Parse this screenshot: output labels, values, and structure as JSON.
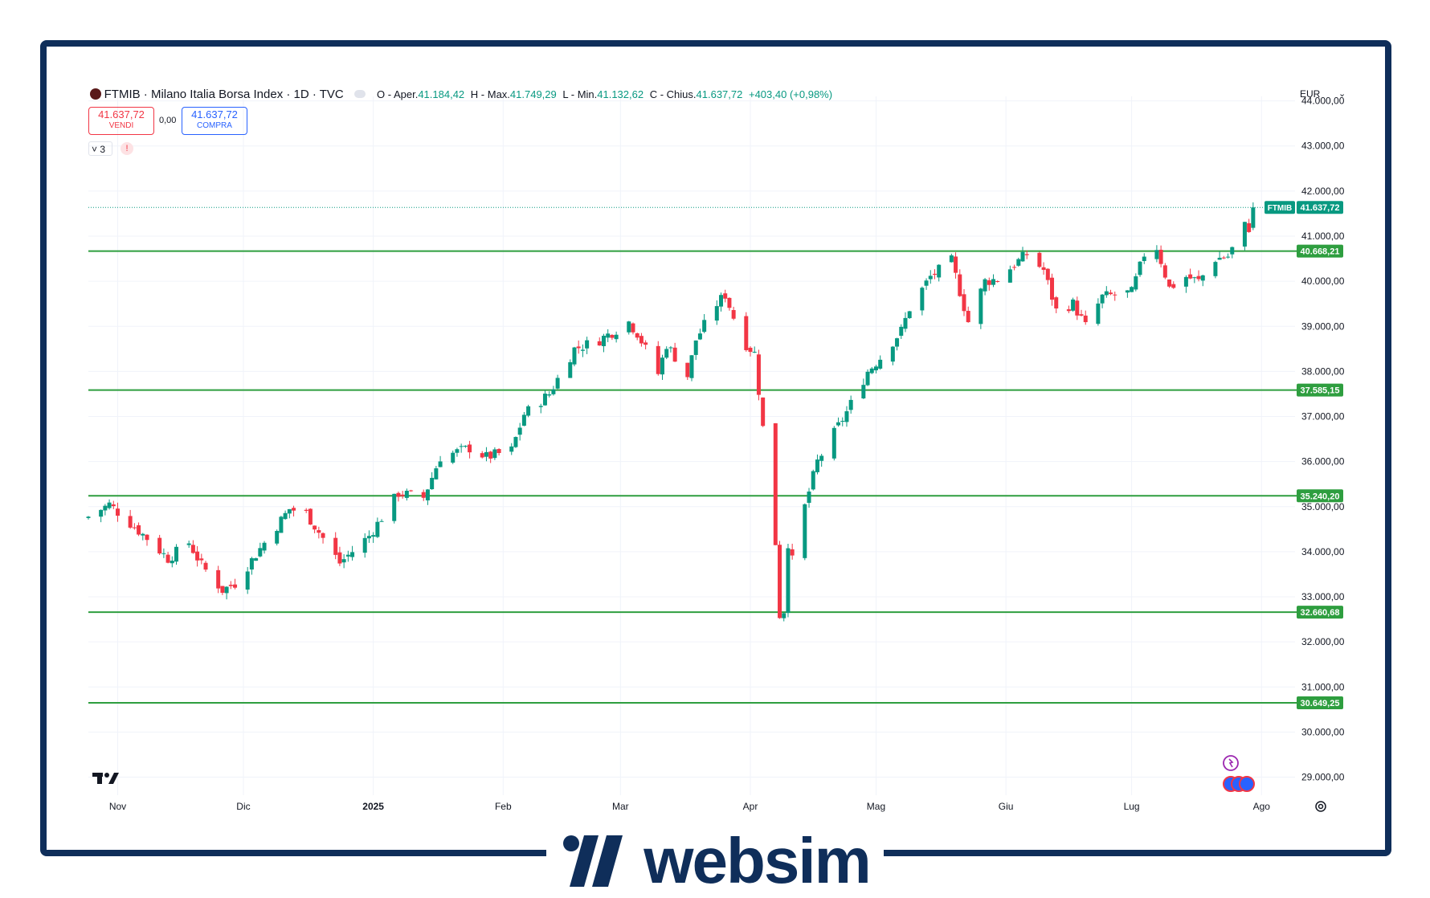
{
  "header": {
    "symbol_icon": "italy-flag-icon",
    "title": "FTMIB · Milano Italia Borsa Index · 1D · TVC",
    "open_label": "O - Aper.",
    "open": "41.184,42",
    "high_label": "H - Max.",
    "high": "41.749,29",
    "low_label": "L - Min.",
    "low": "41.132,62",
    "close_label": "C - Chius.",
    "close": "41.637,72",
    "change": "+403,40 (+0,98%)"
  },
  "trade": {
    "sell_price": "41.637,72",
    "sell_label": "VENDI",
    "spread": "0,00",
    "buy_price": "41.637,72",
    "buy_label": "COMPRA"
  },
  "indicators": {
    "count": "3",
    "alert": "!"
  },
  "currency": "EUR",
  "brand": {
    "name": "websim",
    "color": "#0f2e5a"
  },
  "colors": {
    "up": "#089981",
    "down": "#f23645",
    "support": "#2e9e3f",
    "frame": "#0f2e5a"
  },
  "chart_data": {
    "type": "candlestick",
    "symbol": "FTMIB",
    "last_price_label": "41.637,72",
    "ylim": [
      28600,
      44100
    ],
    "y_ticks": [
      29000,
      30000,
      31000,
      32000,
      33000,
      34000,
      35000,
      36000,
      37000,
      38000,
      39000,
      40000,
      41000,
      42000,
      43000,
      44000
    ],
    "y_tick_labels": [
      "29.000,00",
      "30.000,00",
      "31.000,00",
      "32.000,00",
      "33.000,00",
      "34.000,00",
      "35.000,00",
      "36.000,00",
      "37.000,00",
      "38.000,00",
      "39.000,00",
      "40.000,00",
      "41.000,00",
      "42.000,00",
      "43.000,00",
      "44.000,00"
    ],
    "x_start": "2024-10-25",
    "x_end": "2025-08-09",
    "x_ticks": [
      {
        "date": "2024-11-01",
        "label": "Nov"
      },
      {
        "date": "2024-12-01",
        "label": "Dic"
      },
      {
        "date": "2025-01-01",
        "label": "2025"
      },
      {
        "date": "2025-02-01",
        "label": "Feb"
      },
      {
        "date": "2025-03-01",
        "label": "Mar"
      },
      {
        "date": "2025-04-01",
        "label": "Apr"
      },
      {
        "date": "2025-05-01",
        "label": "Mag"
      },
      {
        "date": "2025-06-01",
        "label": "Giu"
      },
      {
        "date": "2025-07-01",
        "label": "Lug"
      },
      {
        "date": "2025-08-01",
        "label": "Ago"
      }
    ],
    "horizontal_levels": [
      {
        "value": 40668.21,
        "label": "40.668,21"
      },
      {
        "value": 37585.15,
        "label": "37.585,15"
      },
      {
        "value": 35240.2,
        "label": "35.240,20"
      },
      {
        "value": 32660.68,
        "label": "32.660,68"
      },
      {
        "value": 30649.25,
        "label": "30.649,25"
      }
    ],
    "last_price": 41637.72,
    "close_series": {
      "description": "approximate daily closes, linearly interpolated between key points",
      "points": [
        [
          "2024-10-25",
          34780
        ],
        [
          "2024-10-30",
          35050
        ],
        [
          "2024-11-05",
          34550
        ],
        [
          "2024-11-08",
          34300
        ],
        [
          "2024-11-13",
          33850
        ],
        [
          "2024-11-18",
          34200
        ],
        [
          "2024-11-21",
          33700
        ],
        [
          "2024-11-26",
          33150
        ],
        [
          "2024-11-29",
          33300
        ],
        [
          "2024-12-06",
          34200
        ],
        [
          "2024-12-12",
          34950
        ],
        [
          "2024-12-16",
          34850
        ],
        [
          "2024-12-20",
          34300
        ],
        [
          "2024-12-24",
          33750
        ],
        [
          "2024-12-31",
          34350
        ],
        [
          "2025-01-07",
          35300
        ],
        [
          "2025-01-13",
          35200
        ],
        [
          "2025-01-17",
          36100
        ],
        [
          "2025-01-24",
          36300
        ],
        [
          "2025-01-28",
          36100
        ],
        [
          "2025-02-03",
          36250
        ],
        [
          "2025-02-06",
          37050
        ],
        [
          "2025-02-12",
          37500
        ],
        [
          "2025-02-18",
          38500
        ],
        [
          "2025-02-24",
          38700
        ],
        [
          "2025-03-03",
          39100
        ],
        [
          "2025-03-05",
          38850
        ],
        [
          "2025-03-10",
          37950
        ],
        [
          "2025-03-12",
          38600
        ],
        [
          "2025-03-17",
          37900
        ],
        [
          "2025-03-19",
          38700
        ],
        [
          "2025-03-24",
          39500
        ],
        [
          "2025-03-26",
          39700
        ],
        [
          "2025-03-28",
          39200
        ],
        [
          "2025-03-31",
          38600
        ],
        [
          "2025-04-02",
          38400
        ],
        [
          "2025-04-04",
          36750
        ],
        [
          "2025-04-07",
          34200
        ],
        [
          "2025-04-08",
          32600
        ],
        [
          "2025-04-09",
          32700
        ],
        [
          "2025-04-10",
          34200
        ],
        [
          "2025-04-11",
          33800
        ],
        [
          "2025-04-14",
          35000
        ],
        [
          "2025-04-17",
          36000
        ],
        [
          "2025-04-24",
          37100
        ],
        [
          "2025-04-29",
          38000
        ],
        [
          "2025-05-02",
          38300
        ],
        [
          "2025-05-07",
          38900
        ],
        [
          "2025-05-09",
          39400
        ],
        [
          "2025-05-14",
          40100
        ],
        [
          "2025-05-19",
          40450
        ],
        [
          "2025-05-23",
          39100
        ],
        [
          "2025-05-27",
          40000
        ],
        [
          "2025-05-30",
          40050
        ],
        [
          "2025-06-04",
          40450
        ],
        [
          "2025-06-06",
          40600
        ],
        [
          "2025-06-10",
          40250
        ],
        [
          "2025-06-13",
          39350
        ],
        [
          "2025-06-17",
          39500
        ],
        [
          "2025-06-20",
          39000
        ],
        [
          "2025-06-24",
          39650
        ],
        [
          "2025-06-27",
          39700
        ],
        [
          "2025-07-01",
          39750
        ],
        [
          "2025-07-04",
          40600
        ],
        [
          "2025-07-07",
          40750
        ],
        [
          "2025-07-10",
          39850
        ],
        [
          "2025-07-14",
          40100
        ],
        [
          "2025-07-17",
          40000
        ],
        [
          "2025-07-21",
          40500
        ],
        [
          "2025-07-24",
          40550
        ],
        [
          "2025-07-28",
          41230
        ],
        [
          "2025-07-29",
          41184.42
        ],
        [
          "2025-07-30",
          41637.72
        ]
      ]
    }
  }
}
